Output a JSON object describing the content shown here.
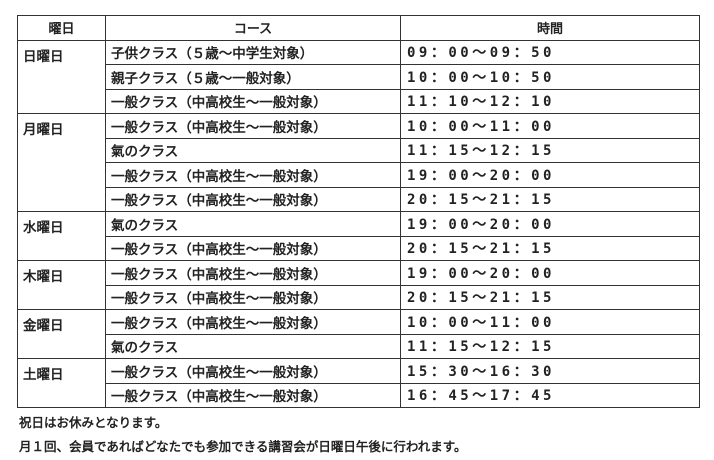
{
  "headers": {
    "day": "曜日",
    "course": "コース",
    "time": "時間"
  },
  "schedule": [
    {
      "day": "日曜日",
      "classes": [
        {
          "course": "子供クラス（５歳～中学生対象）",
          "time": "09：00～09：50"
        },
        {
          "course": "親子クラス（５歳～一般対象）",
          "time": "10：00～10：50"
        },
        {
          "course": "一般クラス（中高校生～一般対象）",
          "time": "11：10～12：10"
        }
      ]
    },
    {
      "day": "月曜日",
      "classes": [
        {
          "course": "一般クラス（中高校生～一般対象）",
          "time": "10：00～11：00"
        },
        {
          "course": "氣のクラス",
          "time": "11：15～12：15"
        },
        {
          "course": "一般クラス（中高校生～一般対象）",
          "time": "19：00～20：00"
        },
        {
          "course": "一般クラス（中高校生～一般対象）",
          "time": "20：15～21：15"
        }
      ]
    },
    {
      "day": "水曜日",
      "classes": [
        {
          "course": "氣のクラス",
          "time": "19：00～20：00"
        },
        {
          "course": "一般クラス（中高校生～一般対象）",
          "time": "20：15～21：15"
        }
      ]
    },
    {
      "day": "木曜日",
      "classes": [
        {
          "course": "一般クラス（中高校生～一般対象）",
          "time": "19：00～20：00"
        },
        {
          "course": "一般クラス（中高校生～一般対象）",
          "time": "20：15～21：15"
        }
      ]
    },
    {
      "day": "金曜日",
      "classes": [
        {
          "course": "一般クラス（中高校生～一般対象）",
          "time": "10：00～11：00"
        },
        {
          "course": "氣のクラス",
          "time": "11：15～12：15"
        }
      ]
    },
    {
      "day": "土曜日",
      "classes": [
        {
          "course": "一般クラス（中高校生～一般対象）",
          "time": "15：30～16：30"
        },
        {
          "course": "一般クラス（中高校生～一般対象）",
          "time": "16：45～17：45"
        }
      ]
    }
  ],
  "notes": [
    "祝日はお休みとなります。",
    "月１回、会員であればどなたでも参加できる講習会が日曜日午後に行われます。"
  ]
}
